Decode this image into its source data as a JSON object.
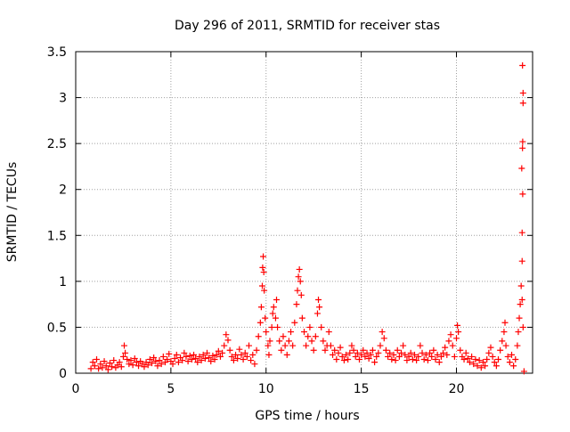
{
  "chart_data": {
    "type": "scatter",
    "title": "Day 296 of 2011, SRMTID for receiver stas",
    "xlabel": "GPS time / hours",
    "ylabel": "SRMTID / TECUs",
    "xlim": [
      0,
      24
    ],
    "ylim": [
      0,
      3.5
    ],
    "x_ticks": [
      0,
      5,
      10,
      15,
      20
    ],
    "x_tick_labels": [
      "0",
      "5",
      "10",
      "15",
      "20"
    ],
    "y_ticks": [
      0,
      0.5,
      1,
      1.5,
      2,
      2.5,
      3,
      3.5
    ],
    "y_tick_labels": [
      "0",
      "0.5",
      "1",
      "1.5",
      "2",
      "2.5",
      "3",
      "3.5"
    ],
    "grid": true,
    "legend": "none",
    "marker": "+",
    "series": [
      {
        "color": "#ff0000",
        "points": [
          [
            0.8,
            0.05
          ],
          [
            0.9,
            0.12
          ],
          [
            1.0,
            0.08
          ],
          [
            1.1,
            0.15
          ],
          [
            1.2,
            0.05
          ],
          [
            1.3,
            0.1
          ],
          [
            1.4,
            0.06
          ],
          [
            1.5,
            0.13
          ],
          [
            1.6,
            0.08
          ],
          [
            1.7,
            0.04
          ],
          [
            1.8,
            0.11
          ],
          [
            1.9,
            0.07
          ],
          [
            2.0,
            0.14
          ],
          [
            2.1,
            0.06
          ],
          [
            2.2,
            0.09
          ],
          [
            2.3,
            0.12
          ],
          [
            2.4,
            0.07
          ],
          [
            2.5,
            0.18
          ],
          [
            2.55,
            0.3
          ],
          [
            2.6,
            0.22
          ],
          [
            2.7,
            0.15
          ],
          [
            2.8,
            0.1
          ],
          [
            2.9,
            0.14
          ],
          [
            3.0,
            0.09
          ],
          [
            3.1,
            0.16
          ],
          [
            3.2,
            0.12
          ],
          [
            3.3,
            0.08
          ],
          [
            3.4,
            0.13
          ],
          [
            3.5,
            0.1
          ],
          [
            3.6,
            0.07
          ],
          [
            3.7,
            0.12
          ],
          [
            3.8,
            0.09
          ],
          [
            3.9,
            0.15
          ],
          [
            4.0,
            0.11
          ],
          [
            4.1,
            0.17
          ],
          [
            4.2,
            0.13
          ],
          [
            4.3,
            0.08
          ],
          [
            4.4,
            0.14
          ],
          [
            4.5,
            0.1
          ],
          [
            4.6,
            0.18
          ],
          [
            4.7,
            0.12
          ],
          [
            4.8,
            0.15
          ],
          [
            4.9,
            0.21
          ],
          [
            5.0,
            0.13
          ],
          [
            5.1,
            0.1
          ],
          [
            5.2,
            0.16
          ],
          [
            5.3,
            0.2
          ],
          [
            5.4,
            0.12
          ],
          [
            5.5,
            0.17
          ],
          [
            5.6,
            0.14
          ],
          [
            5.7,
            0.22
          ],
          [
            5.8,
            0.18
          ],
          [
            5.9,
            0.13
          ],
          [
            6.0,
            0.19
          ],
          [
            6.1,
            0.15
          ],
          [
            6.2,
            0.2
          ],
          [
            6.3,
            0.16
          ],
          [
            6.4,
            0.12
          ],
          [
            6.5,
            0.18
          ],
          [
            6.6,
            0.14
          ],
          [
            6.7,
            0.2
          ],
          [
            6.8,
            0.16
          ],
          [
            6.9,
            0.22
          ],
          [
            7.0,
            0.17
          ],
          [
            7.1,
            0.13
          ],
          [
            7.2,
            0.19
          ],
          [
            7.3,
            0.15
          ],
          [
            7.4,
            0.2
          ],
          [
            7.5,
            0.24
          ],
          [
            7.6,
            0.18
          ],
          [
            7.7,
            0.22
          ],
          [
            7.8,
            0.3
          ],
          [
            7.9,
            0.42
          ],
          [
            8.0,
            0.36
          ],
          [
            8.1,
            0.25
          ],
          [
            8.2,
            0.18
          ],
          [
            8.3,
            0.14
          ],
          [
            8.4,
            0.2
          ],
          [
            8.5,
            0.16
          ],
          [
            8.6,
            0.26
          ],
          [
            8.7,
            0.2
          ],
          [
            8.8,
            0.15
          ],
          [
            8.9,
            0.22
          ],
          [
            9.0,
            0.18
          ],
          [
            9.1,
            0.3
          ],
          [
            9.2,
            0.14
          ],
          [
            9.3,
            0.2
          ],
          [
            9.4,
            0.1
          ],
          [
            9.5,
            0.25
          ],
          [
            9.6,
            0.4
          ],
          [
            9.7,
            0.55
          ],
          [
            9.75,
            0.72
          ],
          [
            9.8,
            0.95
          ],
          [
            9.82,
            1.15
          ],
          [
            9.85,
            1.27
          ],
          [
            9.88,
            1.1
          ],
          [
            9.9,
            0.9
          ],
          [
            9.95,
            0.6
          ],
          [
            10.0,
            0.45
          ],
          [
            10.1,
            0.3
          ],
          [
            10.15,
            0.2
          ],
          [
            10.2,
            0.35
          ],
          [
            10.3,
            0.5
          ],
          [
            10.35,
            0.65
          ],
          [
            10.4,
            0.72
          ],
          [
            10.5,
            0.6
          ],
          [
            10.55,
            0.8
          ],
          [
            10.6,
            0.5
          ],
          [
            10.7,
            0.35
          ],
          [
            10.8,
            0.25
          ],
          [
            10.9,
            0.4
          ],
          [
            11.0,
            0.3
          ],
          [
            11.1,
            0.2
          ],
          [
            11.2,
            0.35
          ],
          [
            11.3,
            0.45
          ],
          [
            11.4,
            0.3
          ],
          [
            11.5,
            0.55
          ],
          [
            11.6,
            0.75
          ],
          [
            11.65,
            0.9
          ],
          [
            11.7,
            1.05
          ],
          [
            11.75,
            1.13
          ],
          [
            11.8,
            1.0
          ],
          [
            11.85,
            0.85
          ],
          [
            11.9,
            0.6
          ],
          [
            12.0,
            0.45
          ],
          [
            12.1,
            0.3
          ],
          [
            12.2,
            0.4
          ],
          [
            12.3,
            0.5
          ],
          [
            12.4,
            0.35
          ],
          [
            12.5,
            0.25
          ],
          [
            12.6,
            0.4
          ],
          [
            12.7,
            0.65
          ],
          [
            12.75,
            0.8
          ],
          [
            12.8,
            0.72
          ],
          [
            12.9,
            0.5
          ],
          [
            13.0,
            0.35
          ],
          [
            13.1,
            0.25
          ],
          [
            13.2,
            0.3
          ],
          [
            13.3,
            0.45
          ],
          [
            13.4,
            0.3
          ],
          [
            13.5,
            0.2
          ],
          [
            13.6,
            0.25
          ],
          [
            13.7,
            0.15
          ],
          [
            13.8,
            0.22
          ],
          [
            13.9,
            0.28
          ],
          [
            14.0,
            0.18
          ],
          [
            14.1,
            0.14
          ],
          [
            14.2,
            0.2
          ],
          [
            14.3,
            0.15
          ],
          [
            14.4,
            0.22
          ],
          [
            14.5,
            0.3
          ],
          [
            14.6,
            0.25
          ],
          [
            14.7,
            0.18
          ],
          [
            14.8,
            0.22
          ],
          [
            14.9,
            0.15
          ],
          [
            15.0,
            0.2
          ],
          [
            15.1,
            0.25
          ],
          [
            15.2,
            0.18
          ],
          [
            15.3,
            0.22
          ],
          [
            15.4,
            0.16
          ],
          [
            15.5,
            0.2
          ],
          [
            15.6,
            0.25
          ],
          [
            15.7,
            0.12
          ],
          [
            15.8,
            0.18
          ],
          [
            15.9,
            0.22
          ],
          [
            16.0,
            0.3
          ],
          [
            16.1,
            0.45
          ],
          [
            16.2,
            0.38
          ],
          [
            16.3,
            0.25
          ],
          [
            16.4,
            0.18
          ],
          [
            16.5,
            0.22
          ],
          [
            16.6,
            0.15
          ],
          [
            16.7,
            0.2
          ],
          [
            16.8,
            0.14
          ],
          [
            16.9,
            0.25
          ],
          [
            17.0,
            0.18
          ],
          [
            17.1,
            0.22
          ],
          [
            17.2,
            0.3
          ],
          [
            17.3,
            0.2
          ],
          [
            17.4,
            0.14
          ],
          [
            17.5,
            0.18
          ],
          [
            17.6,
            0.22
          ],
          [
            17.7,
            0.15
          ],
          [
            17.8,
            0.2
          ],
          [
            17.9,
            0.14
          ],
          [
            18.0,
            0.18
          ],
          [
            18.1,
            0.3
          ],
          [
            18.2,
            0.22
          ],
          [
            18.3,
            0.15
          ],
          [
            18.4,
            0.2
          ],
          [
            18.5,
            0.14
          ],
          [
            18.6,
            0.22
          ],
          [
            18.7,
            0.18
          ],
          [
            18.8,
            0.25
          ],
          [
            18.9,
            0.15
          ],
          [
            19.0,
            0.2
          ],
          [
            19.1,
            0.12
          ],
          [
            19.2,
            0.18
          ],
          [
            19.3,
            0.22
          ],
          [
            19.4,
            0.28
          ],
          [
            19.5,
            0.2
          ],
          [
            19.6,
            0.35
          ],
          [
            19.7,
            0.42
          ],
          [
            19.8,
            0.3
          ],
          [
            19.9,
            0.18
          ],
          [
            20.0,
            0.38
          ],
          [
            20.05,
            0.52
          ],
          [
            20.1,
            0.45
          ],
          [
            20.2,
            0.25
          ],
          [
            20.3,
            0.18
          ],
          [
            20.4,
            0.15
          ],
          [
            20.5,
            0.22
          ],
          [
            20.6,
            0.16
          ],
          [
            20.7,
            0.12
          ],
          [
            20.8,
            0.18
          ],
          [
            20.9,
            0.1
          ],
          [
            21.0,
            0.15
          ],
          [
            21.1,
            0.08
          ],
          [
            21.2,
            0.14
          ],
          [
            21.3,
            0.06
          ],
          [
            21.4,
            0.12
          ],
          [
            21.5,
            0.08
          ],
          [
            21.6,
            0.15
          ],
          [
            21.7,
            0.22
          ],
          [
            21.8,
            0.28
          ],
          [
            21.9,
            0.18
          ],
          [
            22.0,
            0.12
          ],
          [
            22.1,
            0.08
          ],
          [
            22.2,
            0.15
          ],
          [
            22.3,
            0.25
          ],
          [
            22.4,
            0.35
          ],
          [
            22.5,
            0.45
          ],
          [
            22.55,
            0.55
          ],
          [
            22.6,
            0.3
          ],
          [
            22.7,
            0.18
          ],
          [
            22.8,
            0.12
          ],
          [
            22.9,
            0.2
          ],
          [
            23.0,
            0.08
          ],
          [
            23.1,
            0.15
          ],
          [
            23.2,
            0.3
          ],
          [
            23.25,
            0.45
          ],
          [
            23.3,
            0.6
          ],
          [
            23.35,
            0.75
          ],
          [
            23.4,
            0.95
          ],
          [
            23.45,
            0.8
          ],
          [
            23.5,
            0.5
          ],
          [
            23.55,
            0.02
          ],
          [
            23.45,
            1.22
          ],
          [
            23.45,
            1.53
          ],
          [
            23.48,
            1.95
          ],
          [
            23.43,
            2.23
          ],
          [
            23.47,
            2.45
          ],
          [
            23.48,
            2.52
          ],
          [
            23.5,
            2.94
          ],
          [
            23.5,
            3.05
          ],
          [
            23.47,
            3.35
          ]
        ]
      }
    ]
  }
}
